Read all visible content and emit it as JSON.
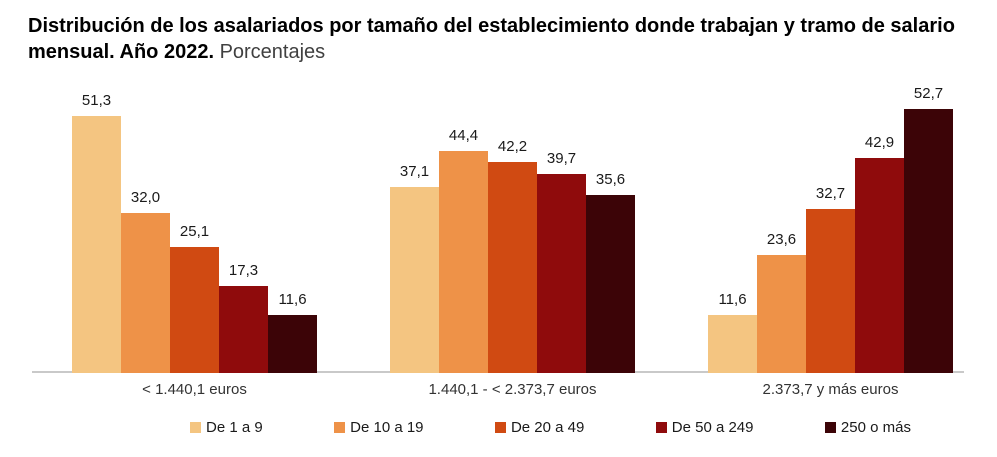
{
  "title": {
    "text_bold": "Distribución de los asalariados por tamaño del establecimiento donde trabajan y tramo de salario mensual. Año 2022.",
    "text_regular": "Porcentajes"
  },
  "chart_data": {
    "type": "bar",
    "title": "Distribución de los asalariados por tamaño del establecimiento donde trabajan y tramo de salario mensual. Año 2022.",
    "subtitle": "Porcentajes",
    "categories": [
      "< 1.440,1 euros",
      "1.440,1 - < 2.373,7 euros",
      "2.373,7 y más euros"
    ],
    "series": [
      {
        "name": "De 1 a 9",
        "color": "#F4C581",
        "values": [
          51.3,
          37.1,
          11.6
        ]
      },
      {
        "name": "De 10 a 19",
        "color": "#EE9248",
        "values": [
          32.0,
          44.4,
          23.6
        ]
      },
      {
        "name": "De 20 a 49",
        "color": "#D04A12",
        "values": [
          25.1,
          42.2,
          32.7
        ]
      },
      {
        "name": "De 50 a 249",
        "color": "#8F0B0C",
        "values": [
          17.3,
          39.7,
          42.9
        ]
      },
      {
        "name": "250 o más",
        "color": "#3C0407",
        "values": [
          11.6,
          35.6,
          52.7
        ]
      }
    ],
    "value_label_decimal_separator": ",",
    "xlabel": "",
    "ylabel": "",
    "ylim": [
      0,
      55
    ],
    "grid": false,
    "legend_position": "bottom",
    "axis_line_color": "#c9c9c9"
  }
}
